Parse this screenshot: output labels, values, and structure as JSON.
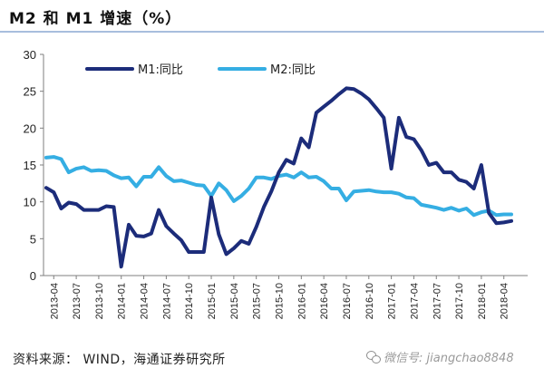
{
  "title": "M2 和 M1 增速（%）",
  "source": "资料来源：  WIND，海通证券研究所",
  "watermark": "微信号: jiangchao8848",
  "chart_data": {
    "type": "line",
    "title": "M2 和 M1 增速（%）",
    "xlabel": "",
    "ylabel": "",
    "ylim": [
      0,
      30
    ],
    "yticks": [
      0,
      5,
      10,
      15,
      20,
      25,
      30
    ],
    "grid": false,
    "legend_position": "top",
    "x_tick_labels": [
      "2013-04",
      "2013-07",
      "2013-10",
      "2014-01",
      "2014-04",
      "2014-07",
      "2014-10",
      "2015-01",
      "2015-04",
      "2015-07",
      "2015-10",
      "2016-01",
      "2016-04",
      "2016-07",
      "2016-10",
      "2017-01",
      "2017-04",
      "2017-07",
      "2017-10",
      "2018-01",
      "2018-04"
    ],
    "x": [
      "2013-03",
      "2013-04",
      "2013-05",
      "2013-06",
      "2013-07",
      "2013-08",
      "2013-09",
      "2013-10",
      "2013-11",
      "2013-12",
      "2014-01",
      "2014-02",
      "2014-03",
      "2014-04",
      "2014-05",
      "2014-06",
      "2014-07",
      "2014-08",
      "2014-09",
      "2014-10",
      "2014-11",
      "2014-12",
      "2015-01",
      "2015-02",
      "2015-03",
      "2015-04",
      "2015-05",
      "2015-06",
      "2015-07",
      "2015-08",
      "2015-09",
      "2015-10",
      "2015-11",
      "2015-12",
      "2016-01",
      "2016-02",
      "2016-03",
      "2016-04",
      "2016-05",
      "2016-06",
      "2016-07",
      "2016-08",
      "2016-09",
      "2016-10",
      "2016-11",
      "2016-12",
      "2017-01",
      "2017-02",
      "2017-03",
      "2017-04",
      "2017-05",
      "2017-06",
      "2017-07",
      "2017-08",
      "2017-09",
      "2017-10",
      "2017-11",
      "2017-12",
      "2018-01",
      "2018-02",
      "2018-03",
      "2018-04",
      "2018-05"
    ],
    "series": [
      {
        "name": "M1:同比",
        "color": "#1c2c7a",
        "values": [
          11.9,
          11.3,
          9.1,
          9.9,
          9.7,
          8.9,
          8.9,
          8.9,
          9.4,
          9.3,
          1.2,
          6.9,
          5.4,
          5.3,
          5.7,
          8.9,
          6.7,
          5.7,
          4.8,
          3.2,
          3.2,
          3.2,
          10.6,
          5.6,
          2.9,
          3.7,
          4.7,
          4.3,
          6.6,
          9.3,
          11.4,
          14.0,
          15.7,
          15.2,
          18.6,
          17.4,
          22.1,
          22.9,
          23.7,
          24.6,
          25.4,
          25.3,
          24.7,
          23.9,
          22.7,
          21.4,
          14.5,
          21.4,
          18.8,
          18.5,
          17.0,
          15.0,
          15.3,
          14.0,
          14.0,
          13.0,
          12.7,
          11.8,
          15.0,
          8.5,
          7.1,
          7.2,
          7.4
        ]
      },
      {
        "name": "M2:同比",
        "color": "#35aee3",
        "values": [
          16.0,
          16.1,
          15.8,
          14.0,
          14.5,
          14.7,
          14.2,
          14.3,
          14.2,
          13.6,
          13.2,
          13.3,
          12.1,
          13.4,
          13.4,
          14.7,
          13.5,
          12.8,
          12.9,
          12.6,
          12.3,
          12.2,
          10.8,
          12.5,
          11.6,
          10.1,
          10.8,
          11.8,
          13.3,
          13.3,
          13.1,
          13.5,
          13.7,
          13.3,
          14.0,
          13.3,
          13.4,
          12.8,
          11.8,
          11.8,
          10.2,
          11.4,
          11.5,
          11.6,
          11.4,
          11.3,
          11.3,
          11.1,
          10.6,
          10.5,
          9.6,
          9.4,
          9.2,
          8.9,
          9.2,
          8.8,
          9.1,
          8.2,
          8.6,
          8.8,
          8.2,
          8.3,
          8.3
        ]
      }
    ]
  }
}
